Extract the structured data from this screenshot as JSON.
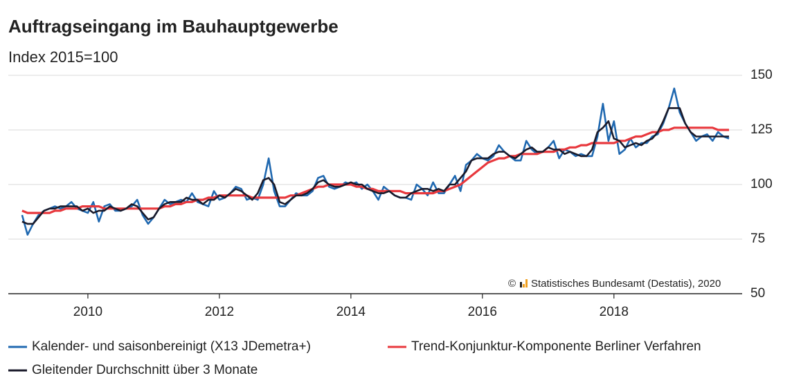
{
  "chart_data": {
    "type": "line",
    "title": "Auftragseingang im Bauhauptgewerbe",
    "subtitle": "Index 2015=100",
    "copyright_symbol": "©",
    "source": "Statistisches Bundesamt (Destatis), 2020",
    "xlim": [
      2008.79,
      2019.95
    ],
    "xticks": [
      2010,
      2012,
      2014,
      2016,
      2018
    ],
    "ylim": [
      50,
      150
    ],
    "yticks": [
      50,
      75,
      100,
      125,
      150
    ],
    "grid": true,
    "x": [
      2009,
      2009.083,
      2009.167,
      2009.25,
      2009.333,
      2009.417,
      2009.5,
      2009.583,
      2009.667,
      2009.75,
      2009.833,
      2009.917,
      2010,
      2010.083,
      2010.167,
      2010.25,
      2010.333,
      2010.417,
      2010.5,
      2010.583,
      2010.667,
      2010.75,
      2010.833,
      2010.917,
      2011,
      2011.083,
      2011.167,
      2011.25,
      2011.333,
      2011.417,
      2011.5,
      2011.583,
      2011.667,
      2011.75,
      2011.833,
      2011.917,
      2012,
      2012.083,
      2012.167,
      2012.25,
      2012.333,
      2012.417,
      2012.5,
      2012.583,
      2012.667,
      2012.75,
      2012.833,
      2012.917,
      2013,
      2013.083,
      2013.167,
      2013.25,
      2013.333,
      2013.417,
      2013.5,
      2013.583,
      2013.667,
      2013.75,
      2013.833,
      2013.917,
      2014,
      2014.083,
      2014.167,
      2014.25,
      2014.333,
      2014.417,
      2014.5,
      2014.583,
      2014.667,
      2014.75,
      2014.833,
      2014.917,
      2015,
      2015.083,
      2015.167,
      2015.25,
      2015.333,
      2015.417,
      2015.5,
      2015.583,
      2015.667,
      2015.75,
      2015.833,
      2015.917,
      2016,
      2016.083,
      2016.167,
      2016.25,
      2016.333,
      2016.417,
      2016.5,
      2016.583,
      2016.667,
      2016.75,
      2016.833,
      2016.917,
      2017,
      2017.083,
      2017.167,
      2017.25,
      2017.333,
      2017.417,
      2017.5,
      2017.583,
      2017.667,
      2017.75,
      2017.833,
      2017.917,
      2018,
      2018.083,
      2018.167,
      2018.25,
      2018.333,
      2018.417,
      2018.5,
      2018.583,
      2018.667,
      2018.75,
      2018.833,
      2018.917,
      2019,
      2019.083,
      2019.167,
      2019.25,
      2019.333,
      2019.417,
      2019.5,
      2019.583,
      2019.667,
      2019.75
    ],
    "series": [
      {
        "name": "Kalender- und saisonbereinigt (X13 JDemetra+)",
        "color": "#1f68b0",
        "values": [
          86,
          77,
          82,
          86,
          88,
          89,
          90,
          89,
          90,
          92,
          89,
          88,
          87,
          92,
          83,
          90,
          91,
          88,
          88,
          89,
          90,
          93,
          86,
          82,
          85,
          89,
          93,
          91,
          92,
          93,
          92,
          96,
          92,
          91,
          90,
          97,
          93,
          94,
          96,
          99,
          98,
          93,
          94,
          93,
          100,
          112,
          97,
          90,
          90,
          93,
          96,
          95,
          95,
          97,
          103,
          104,
          99,
          98,
          99,
          101,
          100,
          101,
          98,
          100,
          97,
          93,
          99,
          97,
          95,
          94,
          94,
          93,
          100,
          98,
          95,
          101,
          96,
          96,
          100,
          104,
          97,
          109,
          111,
          114,
          112,
          111,
          113,
          118,
          115,
          113,
          111,
          111,
          120,
          116,
          114,
          115,
          117,
          120,
          112,
          116,
          115,
          113,
          114,
          113,
          113,
          122,
          137,
          120,
          129,
          114,
          116,
          121,
          117,
          119,
          119,
          122,
          123,
          128,
          135,
          144,
          133,
          128,
          124,
          120,
          122,
          123,
          120,
          124,
          122,
          121
        ]
      },
      {
        "name": "Trend-Konjunktur-Komponente Berliner Verfahren",
        "color": "#e8383d",
        "values": [
          88,
          87,
          87,
          87,
          87,
          87,
          88,
          88,
          89,
          89,
          89,
          90,
          90,
          90,
          90,
          89,
          89,
          89,
          89,
          89,
          89,
          89,
          89,
          89,
          89,
          89,
          90,
          90,
          91,
          91,
          92,
          92,
          93,
          93,
          94,
          94,
          95,
          95,
          95,
          95,
          95,
          95,
          94,
          94,
          94,
          94,
          94,
          94,
          94,
          95,
          95,
          96,
          97,
          98,
          99,
          99,
          100,
          100,
          100,
          100,
          100,
          99,
          99,
          98,
          98,
          97,
          97,
          97,
          97,
          97,
          96,
          96,
          96,
          96,
          96,
          96,
          97,
          97,
          98,
          99,
          100,
          102,
          104,
          106,
          108,
          110,
          111,
          112,
          112,
          113,
          113,
          114,
          114,
          114,
          114,
          115,
          115,
          115,
          116,
          116,
          117,
          117,
          118,
          118,
          119,
          119,
          119,
          119,
          119,
          120,
          120,
          121,
          122,
          122,
          123,
          124,
          124,
          125,
          125,
          126,
          126,
          126,
          126,
          126,
          126,
          126,
          126,
          125,
          125,
          125
        ]
      },
      {
        "name": "Gleitender Durchschnitt über 3 Monate",
        "color": "#1a1a2a",
        "values": [
          83,
          82,
          82,
          85,
          88,
          89,
          89,
          90,
          90,
          90,
          90,
          88,
          89,
          87,
          88,
          88,
          90,
          89,
          88,
          89,
          91,
          90,
          87,
          84,
          85,
          89,
          91,
          92,
          92,
          92,
          94,
          93,
          93,
          91,
          93,
          93,
          95,
          94,
          96,
          98,
          97,
          95,
          93,
          96,
          102,
          103,
          100,
          92,
          91,
          93,
          95,
          95,
          96,
          98,
          101,
          102,
          100,
          99,
          99,
          100,
          101,
          100,
          100,
          98,
          97,
          96,
          96,
          97,
          95,
          94,
          94,
          96,
          97,
          98,
          98,
          97,
          98,
          97,
          100,
          100,
          103,
          106,
          111,
          112,
          112,
          112,
          114,
          115,
          115,
          113,
          112,
          114,
          116,
          117,
          115,
          115,
          117,
          116,
          116,
          114,
          115,
          114,
          113,
          113,
          116,
          124,
          126,
          129,
          121,
          120,
          117,
          118,
          119,
          118,
          120,
          121,
          124,
          129,
          135,
          135,
          135,
          128,
          124,
          122,
          122,
          122,
          122,
          122,
          122,
          122
        ]
      }
    ]
  }
}
